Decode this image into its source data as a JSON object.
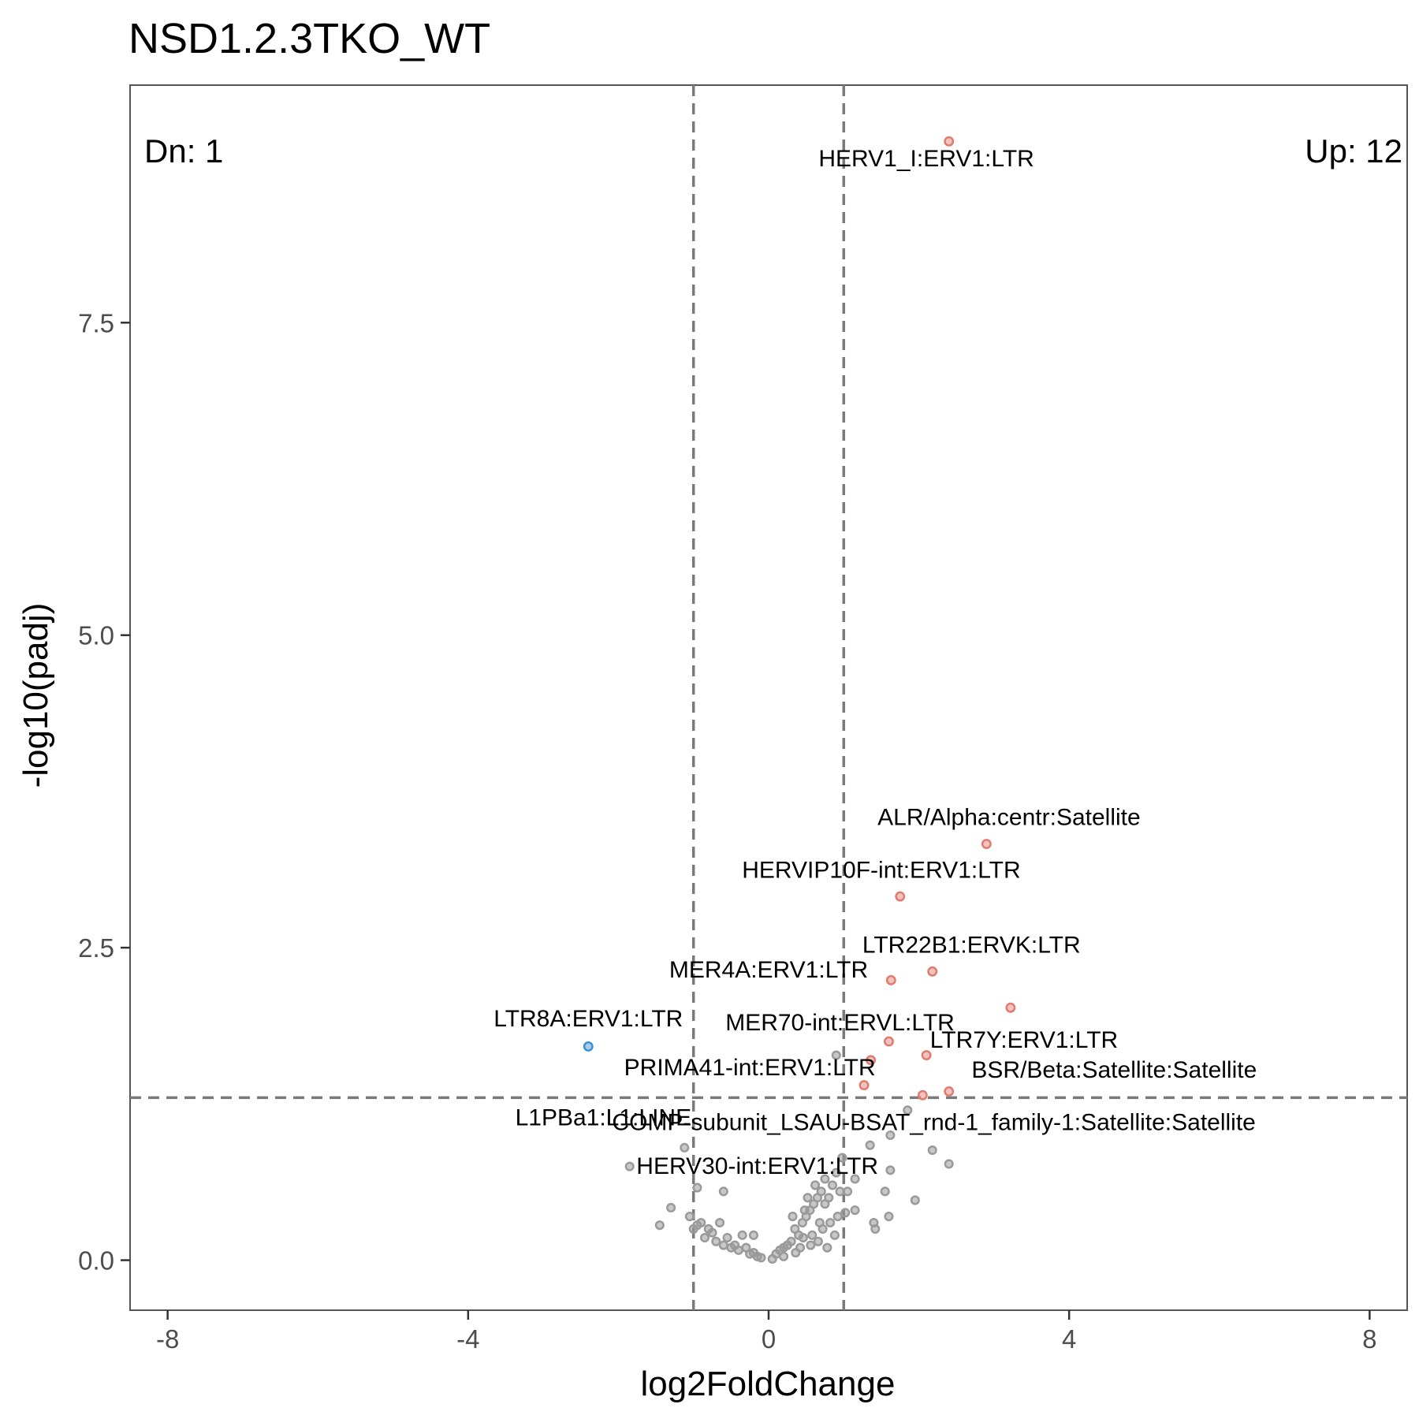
{
  "chart_data": {
    "type": "scatter",
    "title": "NSD1.2.3TKO_WT",
    "xlabel": "log2FoldChange",
    "ylabel": "-log10(padj)",
    "xlim": [
      -8.5,
      8.5
    ],
    "ylim": [
      -0.4,
      9.4
    ],
    "x_ticks": [
      -8,
      -4,
      0,
      4,
      8
    ],
    "x_tick_labels": [
      "-8",
      "-4",
      "0",
      "4",
      "8"
    ],
    "y_ticks": [
      0,
      2.5,
      5,
      7.5
    ],
    "y_tick_labels": [
      "0.0",
      "2.5",
      "5.0",
      "7.5"
    ],
    "grid": false,
    "fc_threshold_lines": [
      -1,
      1
    ],
    "padj_threshold_line": 1.3,
    "counts": {
      "down": "Dn: 1",
      "up": "Up: 12"
    },
    "colors": {
      "up": "#e07b6e",
      "down": "#3b8fd4",
      "ns": "#9a9a9a",
      "threshold": "#7a7a7a",
      "frame": "#555555"
    },
    "series": [
      {
        "status": "up",
        "points": [
          {
            "x": 2.4,
            "y": 8.95
          },
          {
            "x": 2.9,
            "y": 3.33
          },
          {
            "x": 1.75,
            "y": 2.91
          },
          {
            "x": 2.18,
            "y": 2.31
          },
          {
            "x": 1.63,
            "y": 2.24
          },
          {
            "x": 3.22,
            "y": 2.02
          },
          {
            "x": 1.6,
            "y": 1.75
          },
          {
            "x": 2.1,
            "y": 1.64
          },
          {
            "x": 1.36,
            "y": 1.6
          },
          {
            "x": 1.27,
            "y": 1.4
          },
          {
            "x": 2.4,
            "y": 1.35
          },
          {
            "x": 2.05,
            "y": 1.32
          }
        ]
      },
      {
        "status": "down",
        "points": [
          {
            "x": -2.4,
            "y": 1.71
          }
        ]
      },
      {
        "status": "ns",
        "points": [
          {
            "x": -1.85,
            "y": 0.75
          },
          {
            "x": -1.12,
            "y": 0.9
          },
          {
            "x": -0.95,
            "y": 0.58
          },
          {
            "x": -1.3,
            "y": 0.42
          },
          {
            "x": -1.45,
            "y": 0.28
          },
          {
            "x": -0.6,
            "y": 0.55
          },
          {
            "x": -0.9,
            "y": 0.3
          },
          {
            "x": -0.8,
            "y": 0.25
          },
          {
            "x": -0.65,
            "y": 0.3
          },
          {
            "x": -0.55,
            "y": 0.18
          },
          {
            "x": -0.45,
            "y": 0.12
          },
          {
            "x": -0.3,
            "y": 0.1
          },
          {
            "x": -0.7,
            "y": 0.15
          },
          {
            "x": -0.6,
            "y": 0.12
          },
          {
            "x": -0.2,
            "y": 0.06
          },
          {
            "x": -0.1,
            "y": 0.02
          },
          {
            "x": -1.0,
            "y": 0.25
          },
          {
            "x": -0.85,
            "y": 0.18
          },
          {
            "x": -0.35,
            "y": 0.2
          },
          {
            "x": -0.4,
            "y": 0.08
          },
          {
            "x": -0.5,
            "y": 0.1
          },
          {
            "x": -0.25,
            "y": 0.05
          },
          {
            "x": -0.15,
            "y": 0.03
          },
          {
            "x": -0.75,
            "y": 0.22
          },
          {
            "x": 0.1,
            "y": 0.05
          },
          {
            "x": 0.2,
            "y": 0.1
          },
          {
            "x": 0.3,
            "y": 0.15
          },
          {
            "x": 0.4,
            "y": 0.2
          },
          {
            "x": 0.45,
            "y": 0.3
          },
          {
            "x": 0.5,
            "y": 0.35
          },
          {
            "x": 0.55,
            "y": 0.4
          },
          {
            "x": 0.6,
            "y": 0.45
          },
          {
            "x": 0.65,
            "y": 0.5
          },
          {
            "x": 0.7,
            "y": 0.55
          },
          {
            "x": 0.75,
            "y": 0.45
          },
          {
            "x": 0.8,
            "y": 0.5
          },
          {
            "x": 0.85,
            "y": 0.6
          },
          {
            "x": 0.9,
            "y": 0.7
          },
          {
            "x": 0.35,
            "y": 0.25
          },
          {
            "x": 0.25,
            "y": 0.12
          },
          {
            "x": 0.15,
            "y": 0.08
          },
          {
            "x": 0.48,
            "y": 0.4
          },
          {
            "x": 0.52,
            "y": 0.5
          },
          {
            "x": 0.62,
            "y": 0.6
          },
          {
            "x": 0.68,
            "y": 0.3
          },
          {
            "x": 0.72,
            "y": 0.25
          },
          {
            "x": 0.58,
            "y": 0.2
          },
          {
            "x": 0.42,
            "y": 0.1
          },
          {
            "x": 0.92,
            "y": 0.35
          },
          {
            "x": 0.95,
            "y": 0.55
          },
          {
            "x": 0.88,
            "y": 0.2
          },
          {
            "x": 0.78,
            "y": 0.1
          },
          {
            "x": 0.66,
            "y": 0.15
          },
          {
            "x": 0.56,
            "y": 0.12
          },
          {
            "x": 0.46,
            "y": 0.18
          },
          {
            "x": 0.36,
            "y": 0.06
          },
          {
            "x": 0.2,
            "y": 0.03
          },
          {
            "x": 0.05,
            "y": 0.01
          },
          {
            "x": 0.9,
            "y": 1.64
          },
          {
            "x": 0.98,
            "y": 0.82
          },
          {
            "x": 1.15,
            "y": 0.65
          },
          {
            "x": 1.35,
            "y": 0.92
          },
          {
            "x": 1.62,
            "y": 1.0
          },
          {
            "x": 1.85,
            "y": 1.2
          },
          {
            "x": 2.18,
            "y": 0.88
          },
          {
            "x": 2.4,
            "y": 0.77
          },
          {
            "x": 1.62,
            "y": 0.72
          },
          {
            "x": 1.15,
            "y": 0.4
          },
          {
            "x": 1.4,
            "y": 0.3
          },
          {
            "x": 1.6,
            "y": 0.35
          },
          {
            "x": 1.42,
            "y": 0.25
          },
          {
            "x": 1.95,
            "y": 0.48
          },
          {
            "x": 1.55,
            "y": 0.55
          },
          {
            "x": 1.05,
            "y": 0.55
          },
          {
            "x": 1.02,
            "y": 0.38
          },
          {
            "x": -0.95,
            "y": 0.28
          },
          {
            "x": -1.05,
            "y": 0.35
          },
          {
            "x": -0.2,
            "y": 0.2
          },
          {
            "x": 0.32,
            "y": 0.35
          },
          {
            "x": 0.75,
            "y": 0.65
          },
          {
            "x": 0.82,
            "y": 0.3
          }
        ]
      }
    ],
    "labels": [
      {
        "text": "HERV1_I:ERV1:LTR",
        "x": 2.1,
        "y": 8.75,
        "anchor": "middle"
      },
      {
        "text": "ALR/Alpha:centr:Satellite",
        "x": 3.2,
        "y": 3.48,
        "anchor": "middle"
      },
      {
        "text": "HERVIP10F-int:ERV1:LTR",
        "x": 1.5,
        "y": 3.06,
        "anchor": "middle"
      },
      {
        "text": "LTR22B1:ERVK:LTR",
        "x": 2.7,
        "y": 2.46,
        "anchor": "middle"
      },
      {
        "text": "MER4A:ERV1:LTR",
        "x": 0.0,
        "y": 2.26,
        "anchor": "middle"
      },
      {
        "text": "LTR7Y:ERV1:LTR",
        "x": 3.4,
        "y": 1.7,
        "anchor": "middle"
      },
      {
        "text": "MER70-int:ERVL:LTR",
        "x": 0.95,
        "y": 1.84,
        "anchor": "middle"
      },
      {
        "text": "LTR8A:ERV1:LTR",
        "x": -2.4,
        "y": 1.87,
        "anchor": "middle"
      },
      {
        "text": "BSR/Beta:Satellite:Satellite",
        "x": 4.6,
        "y": 1.46,
        "anchor": "middle"
      },
      {
        "text": "PRIMA41-int:ERV1:LTR",
        "x": -0.25,
        "y": 1.48,
        "anchor": "middle"
      },
      {
        "text": "L1PBa1:L1:LINE",
        "x": -2.2,
        "y": 1.08,
        "anchor": "middle"
      },
      {
        "text": "COMP-subunit_LSAU-BSAT_rnd-1_family-1:Satellite:Satellite",
        "x": 2.2,
        "y": 1.04,
        "anchor": "middle"
      },
      {
        "text": "HERV30-int:ERV1:LTR",
        "x": -0.15,
        "y": 0.69,
        "anchor": "middle"
      }
    ]
  }
}
